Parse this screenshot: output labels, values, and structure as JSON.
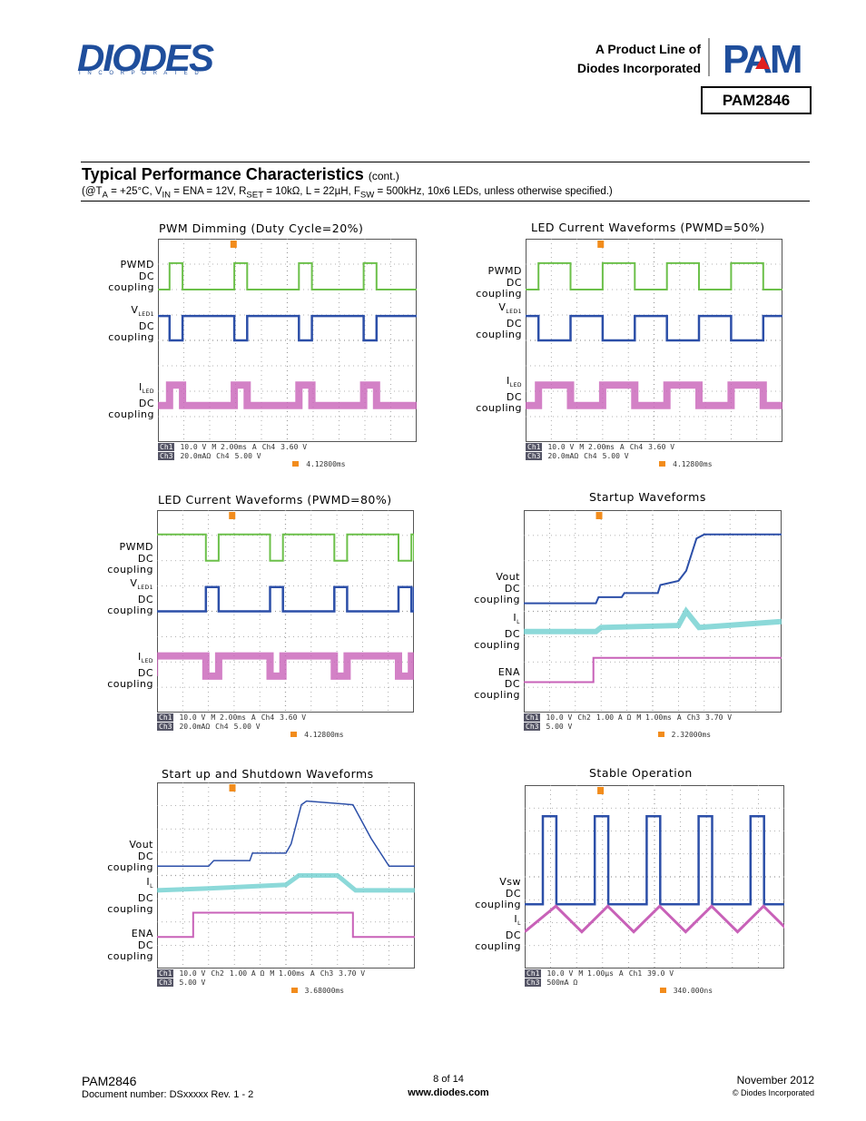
{
  "header": {
    "logo": "DIODES",
    "logo_sub": "I N C O R P O R A T E D",
    "product_line": [
      "A Product Line of",
      "Diodes Incorporated"
    ],
    "brand": "PAM",
    "part": "PAM2846"
  },
  "section": {
    "title": "Typical Performance Characteristics",
    "title_note": "(cont.)",
    "conditions": [
      "(@T",
      "A",
      " = +25°C, V",
      "IN",
      " = ENA = 12V, R",
      "SET",
      " = 10kΩ, L = 22µH, F",
      "SW",
      " = 500kHz, 10x6 LEDs, unless otherwise specified.)"
    ]
  },
  "plots": [
    {
      "title": "PWM Dimming (Duty Cycle=20%)",
      "labels": [
        {
          "head": "PWMD",
          "lines": [
            "DC",
            "coupling"
          ]
        },
        {
          "head": "V",
          "sub": "LED1",
          "lines": [
            "DC",
            "coupling"
          ]
        },
        {
          "head": "I",
          "sub": "LED",
          "lines": [
            "DC",
            "coupling"
          ]
        }
      ],
      "readout": [
        [
          "Ch1",
          "10.0 V",
          "M 2.00ms",
          "A",
          "Ch4",
          "3.60 V"
        ],
        [
          "Ch3",
          "20.0mAΩ",
          "Ch4",
          "5.00 V"
        ]
      ],
      "trigger": "4.12800ms"
    },
    {
      "title": "LED Current Waveforms (PWMD=50%)",
      "labels": [
        {
          "head": "PWMD",
          "lines": [
            "DC",
            "coupling"
          ]
        },
        {
          "head": "V",
          "sub": "LED1",
          "lines": [
            "DC",
            "coupling"
          ]
        },
        {
          "head": "I",
          "sub": "LED",
          "lines": [
            "DC",
            "coupling"
          ]
        }
      ],
      "readout": [
        [
          "Ch1",
          "10.0 V",
          "M 2.00ms",
          "A",
          "Ch4",
          "3.60 V"
        ],
        [
          "Ch3",
          "20.0mAΩ",
          "Ch4",
          "5.00 V"
        ]
      ],
      "trigger": "4.12800ms"
    },
    {
      "title": "LED Current Waveforms (PWMD=80%)",
      "labels": [
        {
          "head": "PWMD",
          "lines": [
            "DC",
            "coupling"
          ]
        },
        {
          "head": "V",
          "sub": "LED1",
          "lines": [
            "DC",
            "coupling"
          ]
        },
        {
          "head": "I",
          "sub": "LED",
          "lines": [
            "DC",
            "coupling"
          ]
        }
      ],
      "readout": [
        [
          "Ch1",
          "10.0 V",
          "M 2.00ms",
          "A",
          "Ch4",
          "3.60 V"
        ],
        [
          "Ch3",
          "20.0mAΩ",
          "Ch4",
          "5.00 V"
        ]
      ],
      "trigger": "4.12800ms"
    },
    {
      "title": "Startup Waveforms",
      "labels": [
        {
          "head": "Vout",
          "lines": [
            "DC",
            "coupling"
          ]
        },
        {
          "head": "I",
          "sub": "L",
          "lines": [
            "DC",
            "coupling"
          ]
        },
        {
          "head": "ENA",
          "lines": [
            "DC",
            "coupling"
          ]
        }
      ],
      "readout": [
        [
          "Ch1",
          "10.0 V",
          "Ch2",
          "1.00 A Ω",
          "M 1.00ms",
          "A",
          "Ch3",
          "3.70 V"
        ],
        [
          "Ch3",
          "5.00 V"
        ]
      ],
      "trigger": "2.32000ms"
    },
    {
      "title": "Start up and Shutdown Waveforms",
      "labels": [
        {
          "head": "Vout",
          "lines": [
            "DC",
            "coupling"
          ]
        },
        {
          "head": "I",
          "sub": "L",
          "lines": [
            "DC",
            "coupling"
          ]
        },
        {
          "head": "ENA",
          "lines": [
            "DC",
            "coupling"
          ]
        }
      ],
      "readout": [
        [
          "Ch1",
          "10.0 V",
          "Ch2",
          "1.00 A Ω",
          "M 1.00ms",
          "A",
          "Ch3",
          "3.70 V"
        ],
        [
          "Ch3",
          "5.00 V"
        ]
      ],
      "trigger": "3.68000ms"
    },
    {
      "title": "Stable Operation",
      "labels": [
        {
          "head": "Vsw",
          "lines": [
            "DC",
            "coupling"
          ]
        },
        {
          "head": "I",
          "sub": "L",
          "lines": [
            "DC",
            "coupling"
          ]
        }
      ],
      "readout": [
        [
          "Ch1",
          "10.0 V",
          "M 1.00µs",
          "A",
          "Ch1",
          "39.0 V"
        ],
        [
          "Ch3",
          "500mA Ω"
        ]
      ],
      "trigger": "340.000ns"
    }
  ],
  "footer": {
    "part": "PAM2846",
    "doc_number": "Document number: DSxxxxx Rev. 1 - 2",
    "page": "8 of 14",
    "url": "www.diodes.com",
    "date": "November 2012",
    "copyright": "© Diodes Incorporated"
  }
}
